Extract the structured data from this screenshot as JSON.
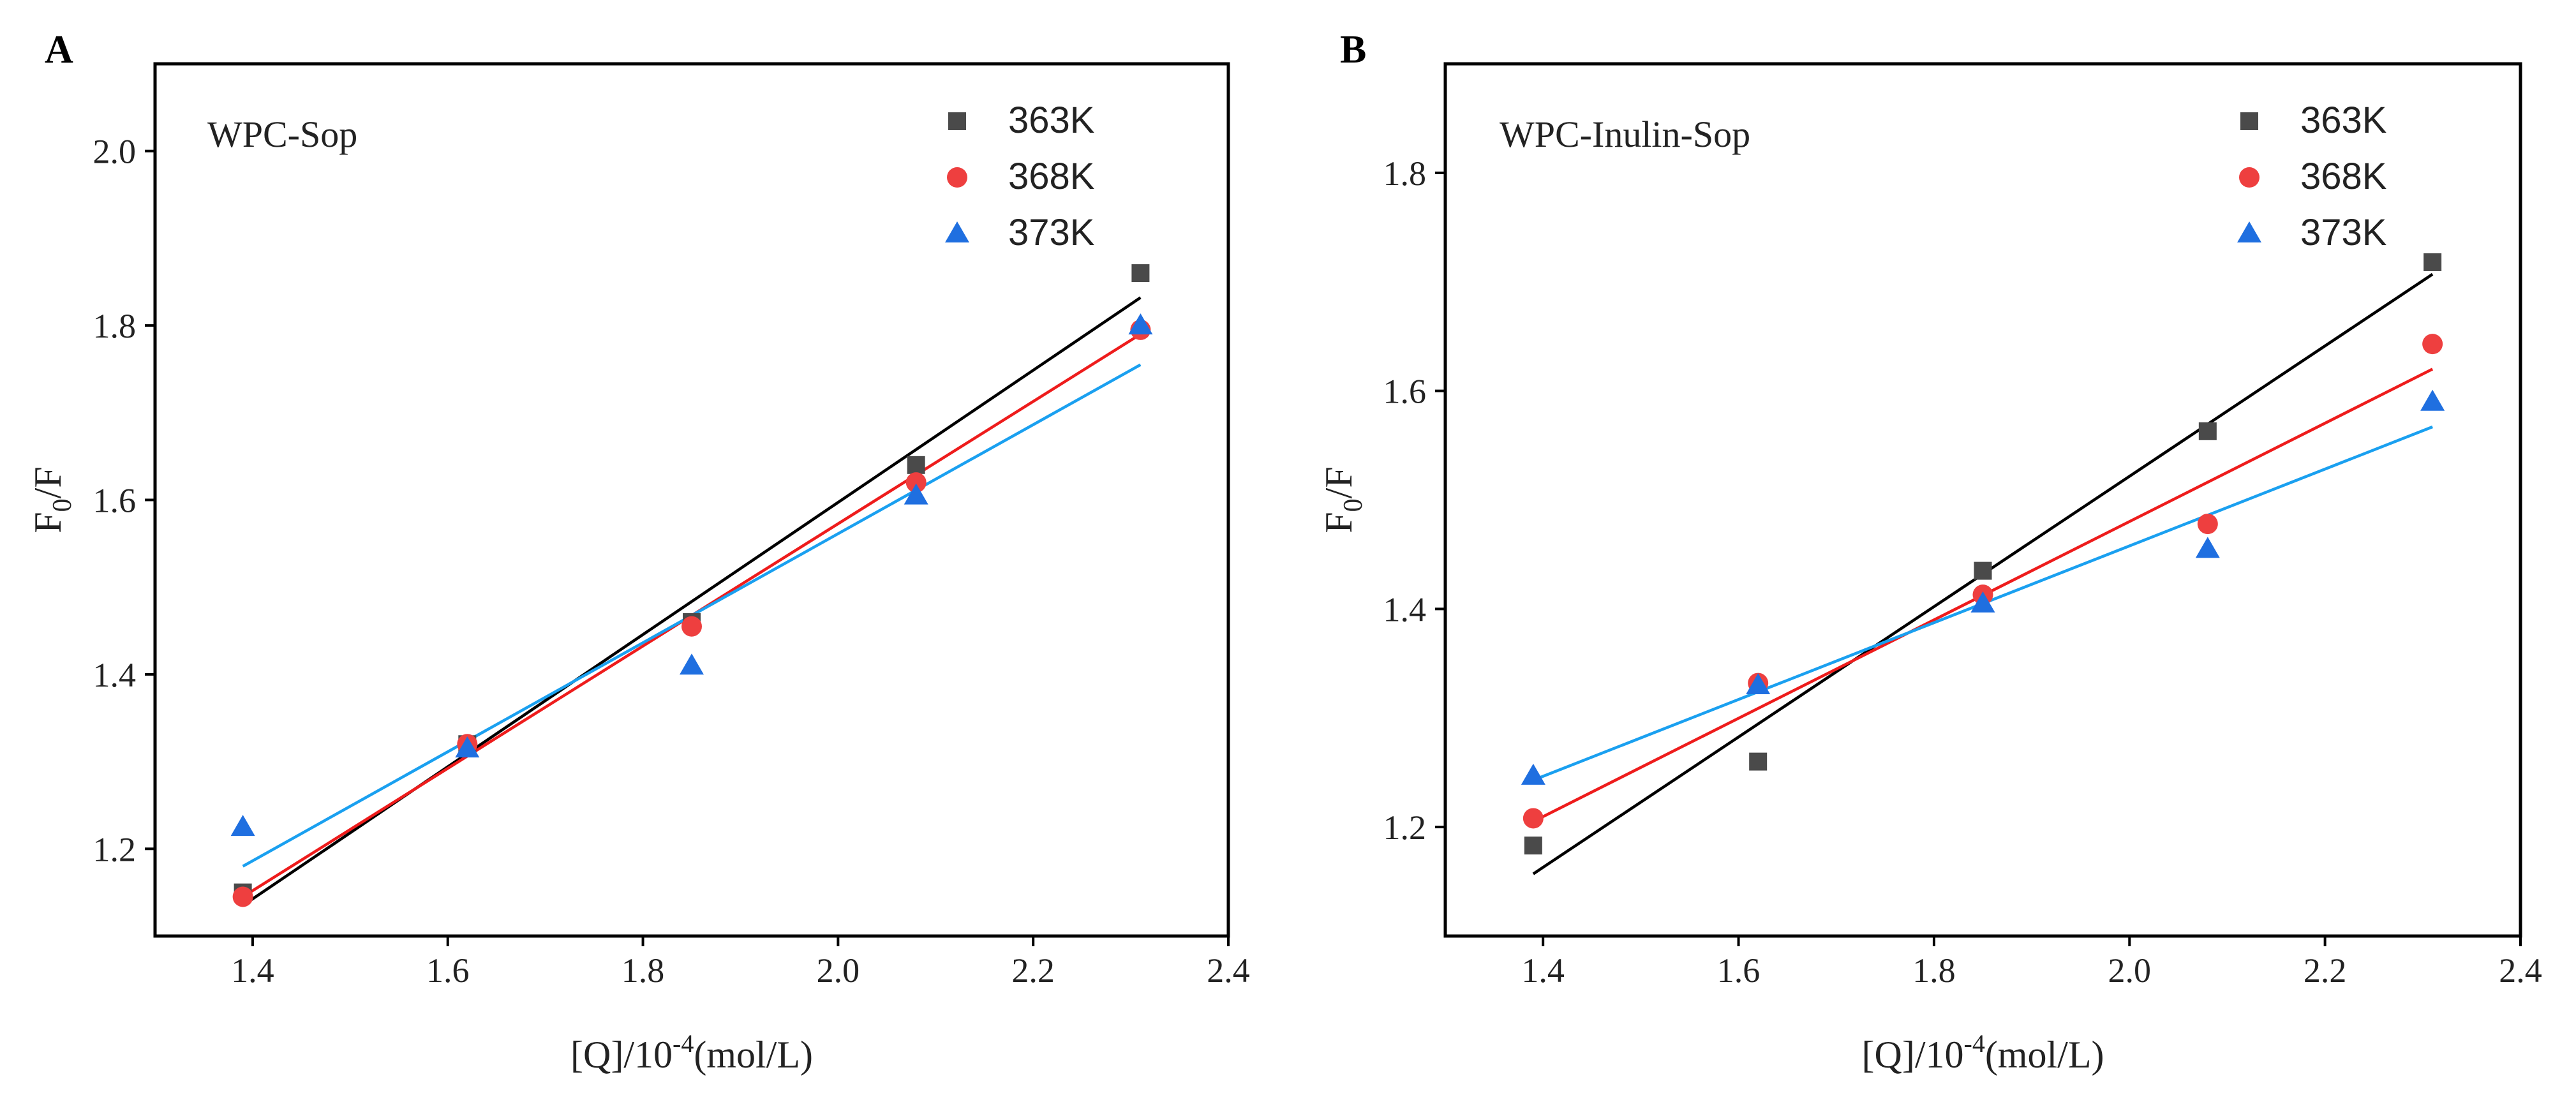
{
  "chart_data": [
    {
      "panel": "A",
      "type": "scatter",
      "title": "WPC-Sop",
      "xlabel": "[Q]/10",
      "xlabel_sup": "-4",
      "xlabel_unit": "(mol/L)",
      "ylabel": "F",
      "ylabel_sub": "0",
      "ylabel_tail": "/F",
      "xlim": [
        1.3,
        2.4
      ],
      "ylim": [
        1.1,
        2.1
      ],
      "xticks": [
        "1.4",
        "1.6",
        "1.8",
        "2.0",
        "2.2",
        "2.4"
      ],
      "yticks": [
        "1.2",
        "1.4",
        "1.6",
        "1.8",
        "2.0"
      ],
      "legend_position": "top-right",
      "series": [
        {
          "name": "363K",
          "marker": "square",
          "color": "#4a4a4a",
          "line_color": "#000000",
          "x": [
            1.39,
            1.62,
            1.85,
            2.08,
            2.31
          ],
          "y": [
            1.15,
            1.32,
            1.46,
            1.64,
            1.86
          ],
          "fit": [
            [
              1.39,
              1.135
            ],
            [
              2.31,
              1.832
            ]
          ]
        },
        {
          "name": "368K",
          "marker": "circle",
          "color": "#ee3f3f",
          "line_color": "#ee1c1c",
          "x": [
            1.39,
            1.62,
            1.85,
            2.08,
            2.31
          ],
          "y": [
            1.145,
            1.32,
            1.455,
            1.62,
            1.795
          ],
          "fit": [
            [
              1.39,
              1.145
            ],
            [
              2.31,
              1.79
            ]
          ]
        },
        {
          "name": "373K",
          "marker": "triangle",
          "color": "#1f6fe0",
          "line_color": "#1aa0f0",
          "x": [
            1.39,
            1.62,
            1.85,
            2.08,
            2.31
          ],
          "y": [
            1.225,
            1.315,
            1.41,
            1.605,
            1.8
          ],
          "fit": [
            [
              1.39,
              1.18
            ],
            [
              2.31,
              1.755
            ]
          ]
        }
      ]
    },
    {
      "panel": "B",
      "type": "scatter",
      "title": "WPC-Inulin-Sop",
      "xlabel": "[Q]/10",
      "xlabel_sup": "-4",
      "xlabel_unit": "(mol/L)",
      "ylabel": "F",
      "ylabel_sub": "0",
      "ylabel_tail": "/F",
      "xlim": [
        1.3,
        2.4
      ],
      "ylim": [
        1.1,
        1.9
      ],
      "xticks": [
        "1.4",
        "1.6",
        "1.8",
        "2.0",
        "2.2",
        "2.4"
      ],
      "yticks": [
        "1.2",
        "1.4",
        "1.6",
        "1.8"
      ],
      "legend_position": "top-right",
      "series": [
        {
          "name": "363K",
          "marker": "square",
          "color": "#4a4a4a",
          "line_color": "#000000",
          "x": [
            1.39,
            1.62,
            1.85,
            2.08,
            2.31
          ],
          "y": [
            1.183,
            1.26,
            1.435,
            1.563,
            1.718
          ],
          "fit": [
            [
              1.39,
              1.157
            ],
            [
              2.31,
              1.707
            ]
          ]
        },
        {
          "name": "368K",
          "marker": "circle",
          "color": "#ee3f3f",
          "line_color": "#ee1c1c",
          "x": [
            1.39,
            1.62,
            1.85,
            2.08,
            2.31
          ],
          "y": [
            1.208,
            1.332,
            1.413,
            1.478,
            1.643
          ],
          "fit": [
            [
              1.39,
              1.205
            ],
            [
              2.31,
              1.62
            ]
          ]
        },
        {
          "name": "373K",
          "marker": "triangle",
          "color": "#1f6fe0",
          "line_color": "#1aa0f0",
          "x": [
            1.39,
            1.62,
            1.85,
            2.08,
            2.31
          ],
          "y": [
            1.247,
            1.33,
            1.405,
            1.455,
            1.59
          ],
          "fit": [
            [
              1.39,
              1.243
            ],
            [
              2.31,
              1.567
            ]
          ]
        }
      ]
    }
  ]
}
